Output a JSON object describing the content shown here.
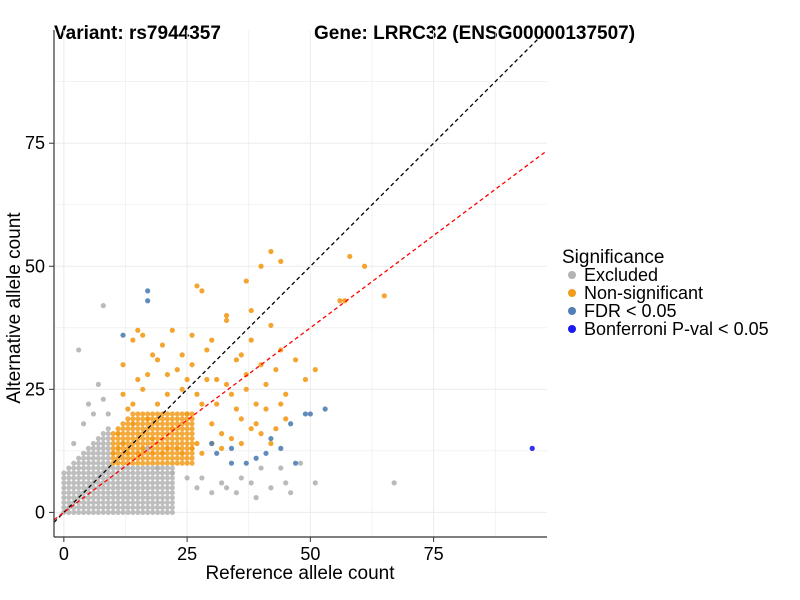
{
  "chart_data": {
    "type": "scatter",
    "title_left": "Variant: rs7944357",
    "title_right": "Gene: LRRC32 (ENSG00000137507)",
    "xlabel": "Reference allele count",
    "ylabel": "Alternative allele count",
    "xlim": [
      -2,
      98
    ],
    "ylim": [
      -5,
      98
    ],
    "x_ticks": [
      0,
      25,
      50,
      75
    ],
    "y_ticks": [
      0,
      25,
      50,
      75
    ],
    "grid": true,
    "legend": {
      "title": "Significance",
      "position": "right",
      "entries": [
        {
          "label": "Excluded",
          "color": "#b3b3b3"
        },
        {
          "label": "Non-significant",
          "color": "#f39b1a"
        },
        {
          "label": "FDR < 0.05",
          "color": "#4f7fb5"
        },
        {
          "label": "Bonferroni P-val < 0.05",
          "color": "#1a1af0"
        }
      ]
    },
    "reference_lines": [
      {
        "slope": 1,
        "intercept": 0,
        "color": "#000000",
        "style": "dashed"
      },
      {
        "slope": 0.75,
        "intercept": 0,
        "color": "#ff0000",
        "style": "dashed"
      }
    ],
    "series": [
      {
        "category": "Excluded",
        "color": "#b3b3b3",
        "points": [
          [
            8,
            42
          ],
          [
            3,
            33
          ],
          [
            17,
            13
          ],
          [
            19,
            9
          ],
          [
            22,
            8
          ],
          [
            25,
            7
          ],
          [
            27,
            5
          ],
          [
            28,
            7
          ],
          [
            30,
            4
          ],
          [
            32,
            6
          ],
          [
            33,
            5
          ],
          [
            35,
            4
          ],
          [
            36,
            7
          ],
          [
            38,
            6
          ],
          [
            39,
            3
          ],
          [
            40,
            9
          ],
          [
            42,
            5
          ],
          [
            44,
            9
          ],
          [
            45,
            6
          ],
          [
            46,
            4
          ],
          [
            48,
            10
          ],
          [
            51,
            6
          ],
          [
            67,
            6
          ],
          [
            5,
            22
          ],
          [
            6,
            20
          ],
          [
            7,
            26
          ],
          [
            8,
            23
          ],
          [
            9,
            20
          ],
          [
            4,
            18
          ],
          [
            2,
            14
          ]
        ]
      },
      {
        "category": "Non-significant",
        "color": "#f39b1a",
        "points": [
          [
            10,
            12
          ],
          [
            11,
            16
          ],
          [
            12,
            14
          ],
          [
            13,
            21
          ],
          [
            14,
            18
          ],
          [
            15,
            12
          ],
          [
            16,
            25
          ],
          [
            17,
            19
          ],
          [
            18,
            15
          ],
          [
            19,
            22
          ],
          [
            20,
            12
          ],
          [
            21,
            28
          ],
          [
            22,
            17
          ],
          [
            23,
            13
          ],
          [
            24,
            25
          ],
          [
            25,
            20
          ],
          [
            26,
            30
          ],
          [
            27,
            14
          ],
          [
            28,
            22
          ],
          [
            29,
            33
          ],
          [
            30,
            18
          ],
          [
            31,
            27
          ],
          [
            32,
            13
          ],
          [
            33,
            40
          ],
          [
            34,
            24
          ],
          [
            35,
            31
          ],
          [
            36,
            19
          ],
          [
            37,
            28
          ],
          [
            38,
            35
          ],
          [
            39,
            22
          ],
          [
            40,
            30
          ],
          [
            41,
            26
          ],
          [
            42,
            38
          ],
          [
            43,
            29
          ],
          [
            44,
            33
          ],
          [
            45,
            24
          ],
          [
            47,
            31
          ],
          [
            49,
            27
          ],
          [
            51,
            29
          ],
          [
            27,
            46
          ],
          [
            28,
            45
          ],
          [
            37,
            47
          ],
          [
            40,
            50
          ],
          [
            42,
            53
          ],
          [
            44,
            51
          ],
          [
            56,
            43
          ],
          [
            57,
            43
          ],
          [
            58,
            52
          ],
          [
            61,
            50
          ],
          [
            65,
            44
          ],
          [
            15,
            37
          ],
          [
            16,
            36
          ],
          [
            14,
            35
          ],
          [
            12,
            30
          ],
          [
            15,
            27
          ],
          [
            18,
            32
          ],
          [
            20,
            34
          ],
          [
            22,
            37
          ],
          [
            24,
            32
          ],
          [
            26,
            36
          ],
          [
            30,
            35
          ],
          [
            33,
            39
          ],
          [
            36,
            32
          ],
          [
            38,
            41
          ],
          [
            12,
            24
          ],
          [
            14,
            22
          ],
          [
            17,
            28
          ],
          [
            19,
            31
          ],
          [
            21,
            24
          ],
          [
            23,
            29
          ],
          [
            25,
            27
          ],
          [
            27,
            24
          ],
          [
            29,
            27
          ],
          [
            31,
            22
          ],
          [
            33,
            26
          ],
          [
            35,
            21
          ],
          [
            37,
            25
          ],
          [
            39,
            18
          ],
          [
            41,
            21
          ],
          [
            43,
            17
          ],
          [
            45,
            19
          ],
          [
            11,
            13
          ],
          [
            13,
            12
          ],
          [
            16,
            13
          ],
          [
            18,
            12
          ],
          [
            21,
            13
          ],
          [
            24,
            12
          ],
          [
            26,
            13
          ],
          [
            28,
            12
          ],
          [
            30,
            14
          ],
          [
            32,
            16
          ],
          [
            34,
            15
          ],
          [
            36,
            14
          ],
          [
            38,
            17
          ],
          [
            40,
            16
          ],
          [
            42,
            14
          ],
          [
            44,
            22
          ]
        ]
      },
      {
        "category": "FDR < 0.05",
        "color": "#4f7fb5",
        "points": [
          [
            17,
            45
          ],
          [
            17,
            43
          ],
          [
            12,
            36
          ],
          [
            50,
            20
          ],
          [
            49,
            20
          ],
          [
            53,
            21
          ],
          [
            46,
            18
          ],
          [
            42,
            15
          ],
          [
            44,
            13
          ],
          [
            30,
            14
          ],
          [
            31,
            12
          ],
          [
            34,
            13
          ],
          [
            37,
            10
          ],
          [
            39,
            11
          ],
          [
            41,
            12
          ],
          [
            34,
            10
          ],
          [
            47,
            10
          ]
        ]
      },
      {
        "category": "Bonferroni P-val < 0.05",
        "color": "#1a1af0",
        "points": [
          [
            95,
            13
          ]
        ]
      }
    ]
  }
}
